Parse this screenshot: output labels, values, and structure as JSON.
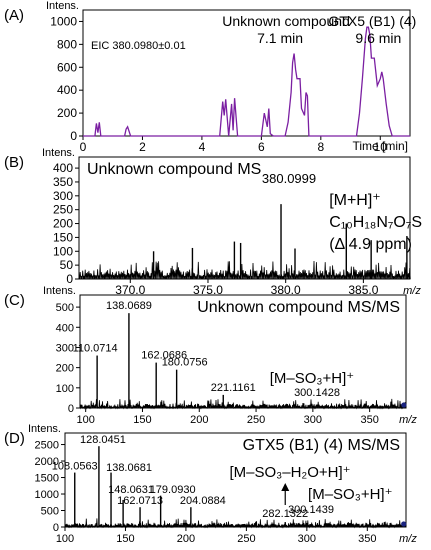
{
  "chart_data": [
    {
      "id": "A",
      "type": "line",
      "panel_label": "(A)",
      "ylabel": "Intens.",
      "xlabel": "Time [min]",
      "xlim": [
        0,
        11
      ],
      "ylim": [
        0,
        1100
      ],
      "xticks": [
        0,
        2,
        4,
        6,
        8,
        10
      ],
      "yticks": [
        0,
        200,
        400,
        600,
        800,
        1000
      ],
      "color": "#7b1fa2",
      "eic_label": "EIC 380.0980±0.01",
      "annotations": [
        {
          "name": "unknown",
          "text": "Unknown compound",
          "sub": "7.1 min",
          "x": 7.1
        },
        {
          "name": "gtx5",
          "text": "GTX5 (B1) (4)",
          "sub": "9.6 min",
          "x": 9.6
        }
      ],
      "x": [
        0.0,
        0.4,
        0.45,
        0.5,
        0.55,
        0.6,
        0.7,
        1.0,
        1.4,
        1.45,
        1.5,
        1.6,
        2.0,
        3.0,
        4.0,
        4.6,
        4.7,
        4.75,
        4.8,
        4.9,
        5.0,
        5.05,
        5.1,
        5.2,
        5.3,
        5.4,
        5.5,
        5.6,
        5.8,
        6.0,
        6.1,
        6.2,
        6.25,
        6.3,
        6.4,
        6.5,
        6.6,
        6.8,
        6.9,
        7.0,
        7.05,
        7.1,
        7.15,
        7.2,
        7.3,
        7.35,
        7.45,
        7.5,
        7.55,
        7.6,
        7.8,
        8.0,
        8.5,
        9.0,
        9.2,
        9.3,
        9.4,
        9.5,
        9.55,
        9.6,
        9.65,
        9.7,
        9.8,
        9.9,
        10.0,
        10.05,
        10.1,
        10.2,
        10.3,
        10.4,
        11.0
      ],
      "y": [
        0,
        0,
        110,
        30,
        120,
        0,
        0,
        0,
        0,
        60,
        80,
        0,
        0,
        0,
        0,
        0,
        300,
        180,
        320,
        0,
        280,
        50,
        330,
        0,
        0,
        0,
        0,
        0,
        0,
        0,
        200,
        80,
        240,
        20,
        0,
        0,
        0,
        0,
        120,
        380,
        640,
        720,
        580,
        500,
        500,
        240,
        180,
        380,
        350,
        0,
        0,
        0,
        0,
        0,
        0,
        200,
        500,
        850,
        950,
        950,
        880,
        680,
        680,
        440,
        500,
        560,
        500,
        280,
        90,
        0,
        0
      ]
    },
    {
      "id": "B",
      "type": "stick",
      "panel_label": "(B)",
      "ylabel": "Intens.",
      "xlabel": "m/z",
      "title": "Unknown compound MS",
      "xlim": [
        366.7,
        388.0
      ],
      "ylim": [
        0,
        440
      ],
      "xticks": [
        370.0,
        375.0,
        380.0,
        385.0
      ],
      "yticks": [
        0,
        50,
        100,
        150,
        200,
        250,
        300,
        350,
        400
      ],
      "color": "#000000",
      "noise": {
        "seed": 7,
        "step": 0.08,
        "low": 10,
        "high": 65
      },
      "peaks": [
        {
          "x": 379.7,
          "y": 270
        },
        {
          "x": 383.9,
          "y": 200
        },
        {
          "x": 387.8,
          "y": 155
        },
        {
          "x": 376.7,
          "y": 135
        },
        {
          "x": 377.1,
          "y": 130
        },
        {
          "x": 385.5,
          "y": 140
        },
        {
          "x": 374.0,
          "y": 112
        },
        {
          "x": 371.5,
          "y": 100
        },
        {
          "x": 380.6,
          "y": 110
        }
      ],
      "peak_label": {
        "text": "380.0999",
        "x": 379.7
      },
      "ion_label": "[M+H]⁺",
      "formula": "C₁₀H₁₈N₇O₇S",
      "ppm_label": "(Δ 4.9 ppm)"
    },
    {
      "id": "C",
      "type": "stick",
      "panel_label": "(C)",
      "ylabel": "Intens.",
      "xlabel": "m/z",
      "title": "Unknown compound MS/MS",
      "xlim": [
        95,
        382
      ],
      "ylim": [
        0,
        560
      ],
      "xticks": [
        100,
        150,
        200,
        250,
        300,
        350
      ],
      "yticks": [
        0,
        100,
        200,
        300,
        400,
        500
      ],
      "color": "#000000",
      "noise": {
        "seed": 11,
        "step": 0.9,
        "low": 2,
        "high": 45
      },
      "peaks": [
        {
          "x": 138.07,
          "y": 470
        },
        {
          "x": 110.07,
          "y": 260
        },
        {
          "x": 162.07,
          "y": 225
        },
        {
          "x": 180.08,
          "y": 190
        },
        {
          "x": 221.12,
          "y": 65
        },
        {
          "x": 300.14,
          "y": 12
        }
      ],
      "peak_labels": [
        {
          "text": "138.0689",
          "x": 138.07
        },
        {
          "text": "110.0714",
          "x": 110.07
        },
        {
          "text": "162.0686",
          "x": 162.07
        },
        {
          "text": "180.0756",
          "x": 180.08
        },
        {
          "text": "221.1161",
          "x": 221.12
        },
        {
          "text": "300.1428",
          "x": 300.14
        }
      ],
      "precursor_mark": {
        "x": 380.1
      },
      "ion_label": "[M–SO₃+H]⁺"
    },
    {
      "id": "D",
      "type": "stick",
      "panel_label": "(D)",
      "ylabel": "Intens.",
      "xlabel": "m/z",
      "title": "GTX5 (B1) (4) MS/MS",
      "xlim": [
        100,
        382
      ],
      "ylim": [
        0,
        2850
      ],
      "xticks": [
        100,
        150,
        200,
        250,
        300,
        350
      ],
      "yticks": [
        0,
        500,
        1000,
        1500,
        2000,
        2500
      ],
      "color": "#000000",
      "noise": {
        "seed": 23,
        "step": 0.8,
        "low": 20,
        "high": 260
      },
      "peaks": [
        {
          "x": 128.05,
          "y": 2450
        },
        {
          "x": 108.06,
          "y": 1650
        },
        {
          "x": 138.07,
          "y": 1650
        },
        {
          "x": 148.06,
          "y": 820
        },
        {
          "x": 179.09,
          "y": 950
        },
        {
          "x": 162.07,
          "y": 600
        },
        {
          "x": 204.09,
          "y": 600
        },
        {
          "x": 282.13,
          "y": 150
        },
        {
          "x": 300.14,
          "y": 60
        }
      ],
      "peak_labels": [
        {
          "text": "128.0451",
          "x": 128.05
        },
        {
          "text": "108.0563",
          "x": 108.06
        },
        {
          "text": "138.0681",
          "x": 138.07
        },
        {
          "text": "148.0631",
          "x": 148.06
        },
        {
          "text": "179.0930",
          "x": 179.09
        },
        {
          "text": "162.0713",
          "x": 162.07
        },
        {
          "text": "204.0884",
          "x": 204.09
        },
        {
          "text": "282.1322",
          "x": 282.13
        },
        {
          "text": "300.1439",
          "x": 300.14
        }
      ],
      "precursor_mark": {
        "x": 380.1
      },
      "ion_label_1": "[M–SO₃–H₂O+H]⁺",
      "ion_label_2": "[M–SO₃+H]⁺"
    }
  ]
}
